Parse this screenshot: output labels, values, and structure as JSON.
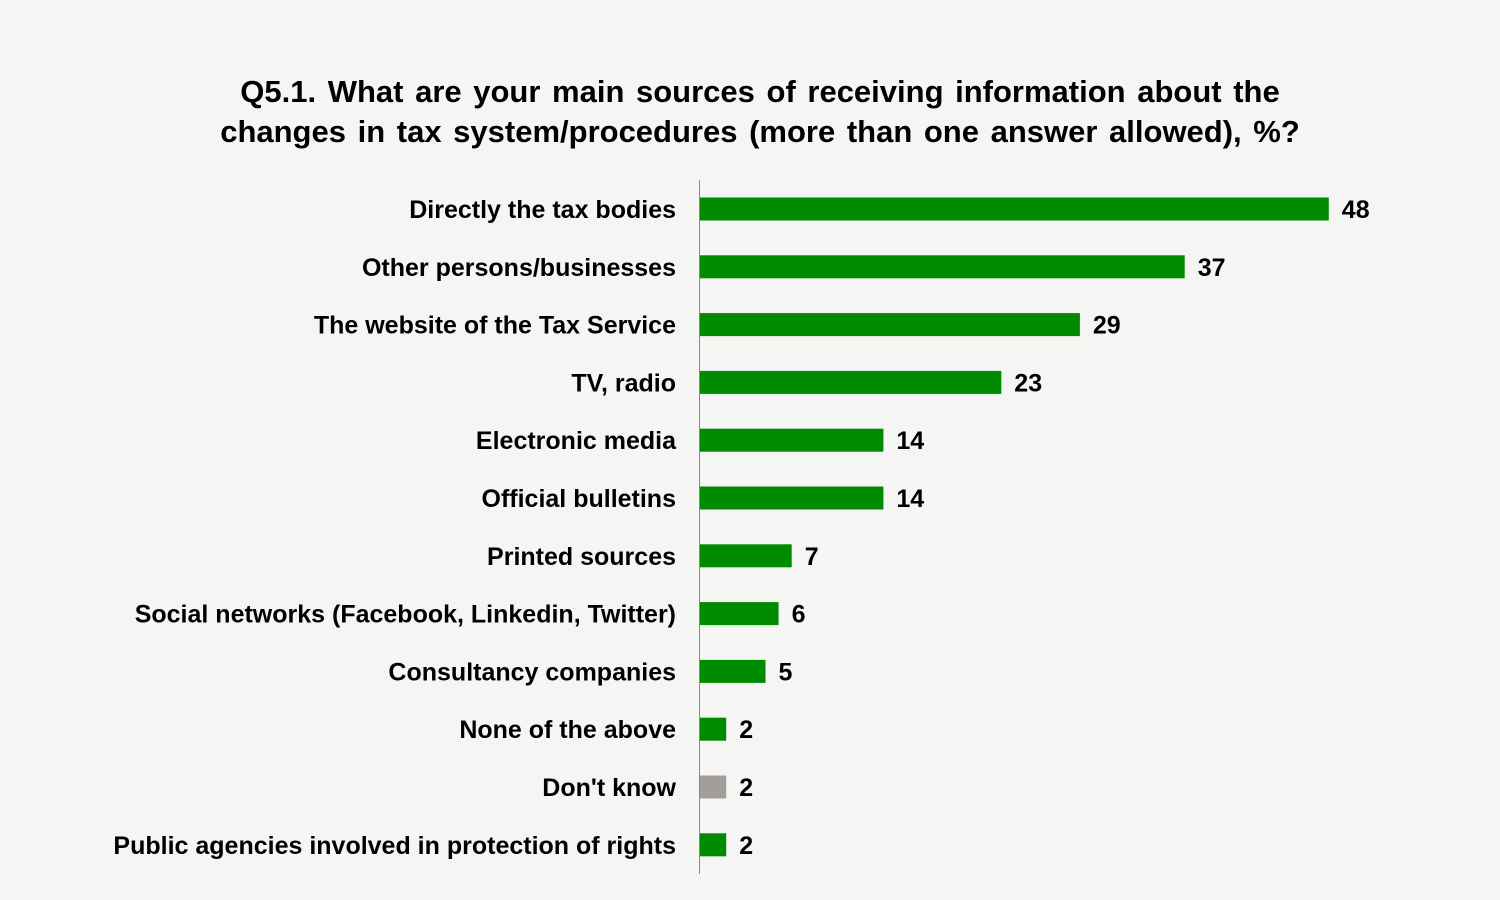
{
  "chart_data": {
    "type": "bar",
    "orientation": "horizontal",
    "title_lines": [
      "Q5.1. What are your main sources of receiving information about the",
      "changes in tax system/procedures (more than one answer allowed), %?"
    ],
    "categories": [
      "Directly the tax bodies",
      "Other persons/businesses",
      "The website of the Tax Service",
      "TV, radio",
      "Electronic media",
      "Official bulletins",
      "Printed sources",
      "Social networks (Facebook, Linkedin, Twitter)",
      "Consultancy companies",
      "None of the above",
      "Don't know",
      "Public agencies involved in protection of rights"
    ],
    "values": [
      48,
      37,
      29,
      23,
      14,
      14,
      7,
      6,
      5,
      2,
      2,
      2
    ],
    "value_labels": [
      "48",
      "37",
      "29",
      "23",
      "14",
      "14",
      "7",
      "6",
      "5",
      "2",
      "2",
      "2"
    ],
    "bar_colors": [
      "#008a00",
      "#008a00",
      "#008a00",
      "#008a00",
      "#008a00",
      "#008a00",
      "#008a00",
      "#008a00",
      "#008a00",
      "#008a00",
      "#a39e9b",
      "#008a00"
    ],
    "xlim": [
      0,
      50
    ],
    "grid": false,
    "legend": "none",
    "xlabel": "",
    "ylabel": ""
  }
}
